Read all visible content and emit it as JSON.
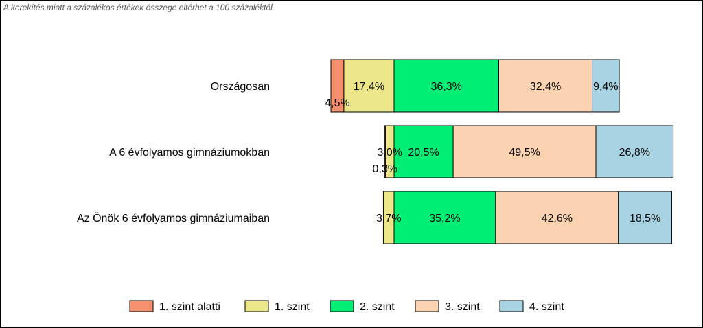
{
  "note": "A kerekítés miatt a százalékos értékek összege eltérhet a 100 százaléktól.",
  "chart_data": {
    "type": "bar",
    "orientation": "horizontal",
    "stacked": true,
    "categories": [
      "Országosan",
      "A 6 évfolyamos gimnáziumokban",
      "Az Önök 6 évfolyamos gimnáziumaiban"
    ],
    "series": [
      {
        "name": "1. szint alatti",
        "color": "#f4906c",
        "values": [
          4.5,
          0.3,
          0
        ],
        "labels": [
          "4,5%",
          "0,3%",
          ""
        ]
      },
      {
        "name": "1. szint",
        "color": "#ece68a",
        "values": [
          17.4,
          3.0,
          3.7
        ],
        "labels": [
          "17,4%",
          "3,0%",
          "3,7%"
        ]
      },
      {
        "name": "2. szint",
        "color": "#00ee76",
        "values": [
          36.3,
          20.5,
          35.2
        ],
        "labels": [
          "36,3%",
          "20,5%",
          "35,2%"
        ]
      },
      {
        "name": "3. szint",
        "color": "#fcd3b0",
        "values": [
          32.4,
          49.5,
          42.6
        ],
        "labels": [
          "32,4%",
          "49,5%",
          "42,6%"
        ]
      },
      {
        "name": "4. szint",
        "color": "#a7d3e2",
        "values": [
          9.4,
          26.8,
          18.5
        ],
        "labels": [
          "9,4%",
          "26,8%",
          "18,5%"
        ]
      }
    ],
    "alignment": "diverging at boundary between 1. szint and 2. szint",
    "grid": false,
    "legend": "bottom"
  }
}
